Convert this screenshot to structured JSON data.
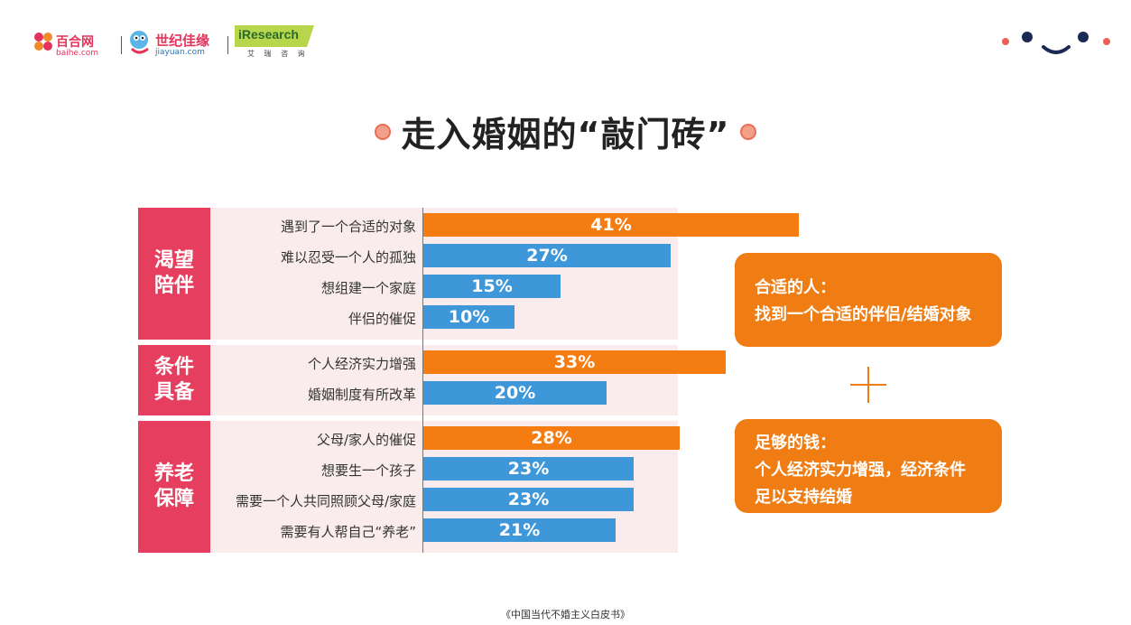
{
  "header": {
    "logos": {
      "baihe_name": "百合网",
      "baihe_url": "baihe.com",
      "jiayuan_name": "世纪佳缘",
      "jiayuan_url": "jiayuan.com",
      "iresearch_name": "iResearch",
      "iresearch_sub": "艾 瑞 咨 询"
    }
  },
  "title": "走入婚姻的“敲门砖”",
  "chart_data": {
    "type": "bar",
    "orientation": "horizontal",
    "xlim": [
      0,
      50
    ],
    "groups": [
      {
        "label_lines": [
          "渴望",
          "陪伴"
        ],
        "items": [
          {
            "label": "遇到了一个合适的对象",
            "value": 41,
            "value_label": "41%",
            "color": "#f57c10"
          },
          {
            "label": "难以忍受一个人的孤独",
            "value": 27,
            "value_label": "27%",
            "color": "#3d97d9"
          },
          {
            "label": "想组建一个家庭",
            "value": 15,
            "value_label": "15%",
            "color": "#3d97d9"
          },
          {
            "label": "伴侣的催促",
            "value": 10,
            "value_label": "10%",
            "color": "#3d97d9"
          }
        ]
      },
      {
        "label_lines": [
          "条件",
          "具备"
        ],
        "items": [
          {
            "label": "个人经济实力增强",
            "value": 33,
            "value_label": "33%",
            "color": "#f57c10"
          },
          {
            "label": "婚姻制度有所改革",
            "value": 20,
            "value_label": "20%",
            "color": "#3d97d9"
          }
        ]
      },
      {
        "label_lines": [
          "养老",
          "保障"
        ],
        "items": [
          {
            "label": "父母/家人的催促",
            "value": 28,
            "value_label": "28%",
            "color": "#f57c10"
          },
          {
            "label": "想要生一个孩子",
            "value": 23,
            "value_label": "23%",
            "color": "#3d97d9"
          },
          {
            "label": "需要一个人共同照顾父母/家庭",
            "value": 23,
            "value_label": "23%",
            "color": "#3d97d9"
          },
          {
            "label": "需要有人帮自己“养老”",
            "value": 21,
            "value_label": "21%",
            "color": "#3d97d9"
          }
        ]
      }
    ],
    "group_color": "#e53e5e",
    "background_color": "#faeced"
  },
  "cards": {
    "card1": {
      "line1": "合适的人：",
      "line2": "找到一个合适的伴侣/结婚对象"
    },
    "card2": {
      "line1": "足够的钱：",
      "line2": "个人经济实力增强，经济条件",
      "line3": "足以支持结婚"
    }
  },
  "footer": "《中国当代不婚主义白皮书》"
}
